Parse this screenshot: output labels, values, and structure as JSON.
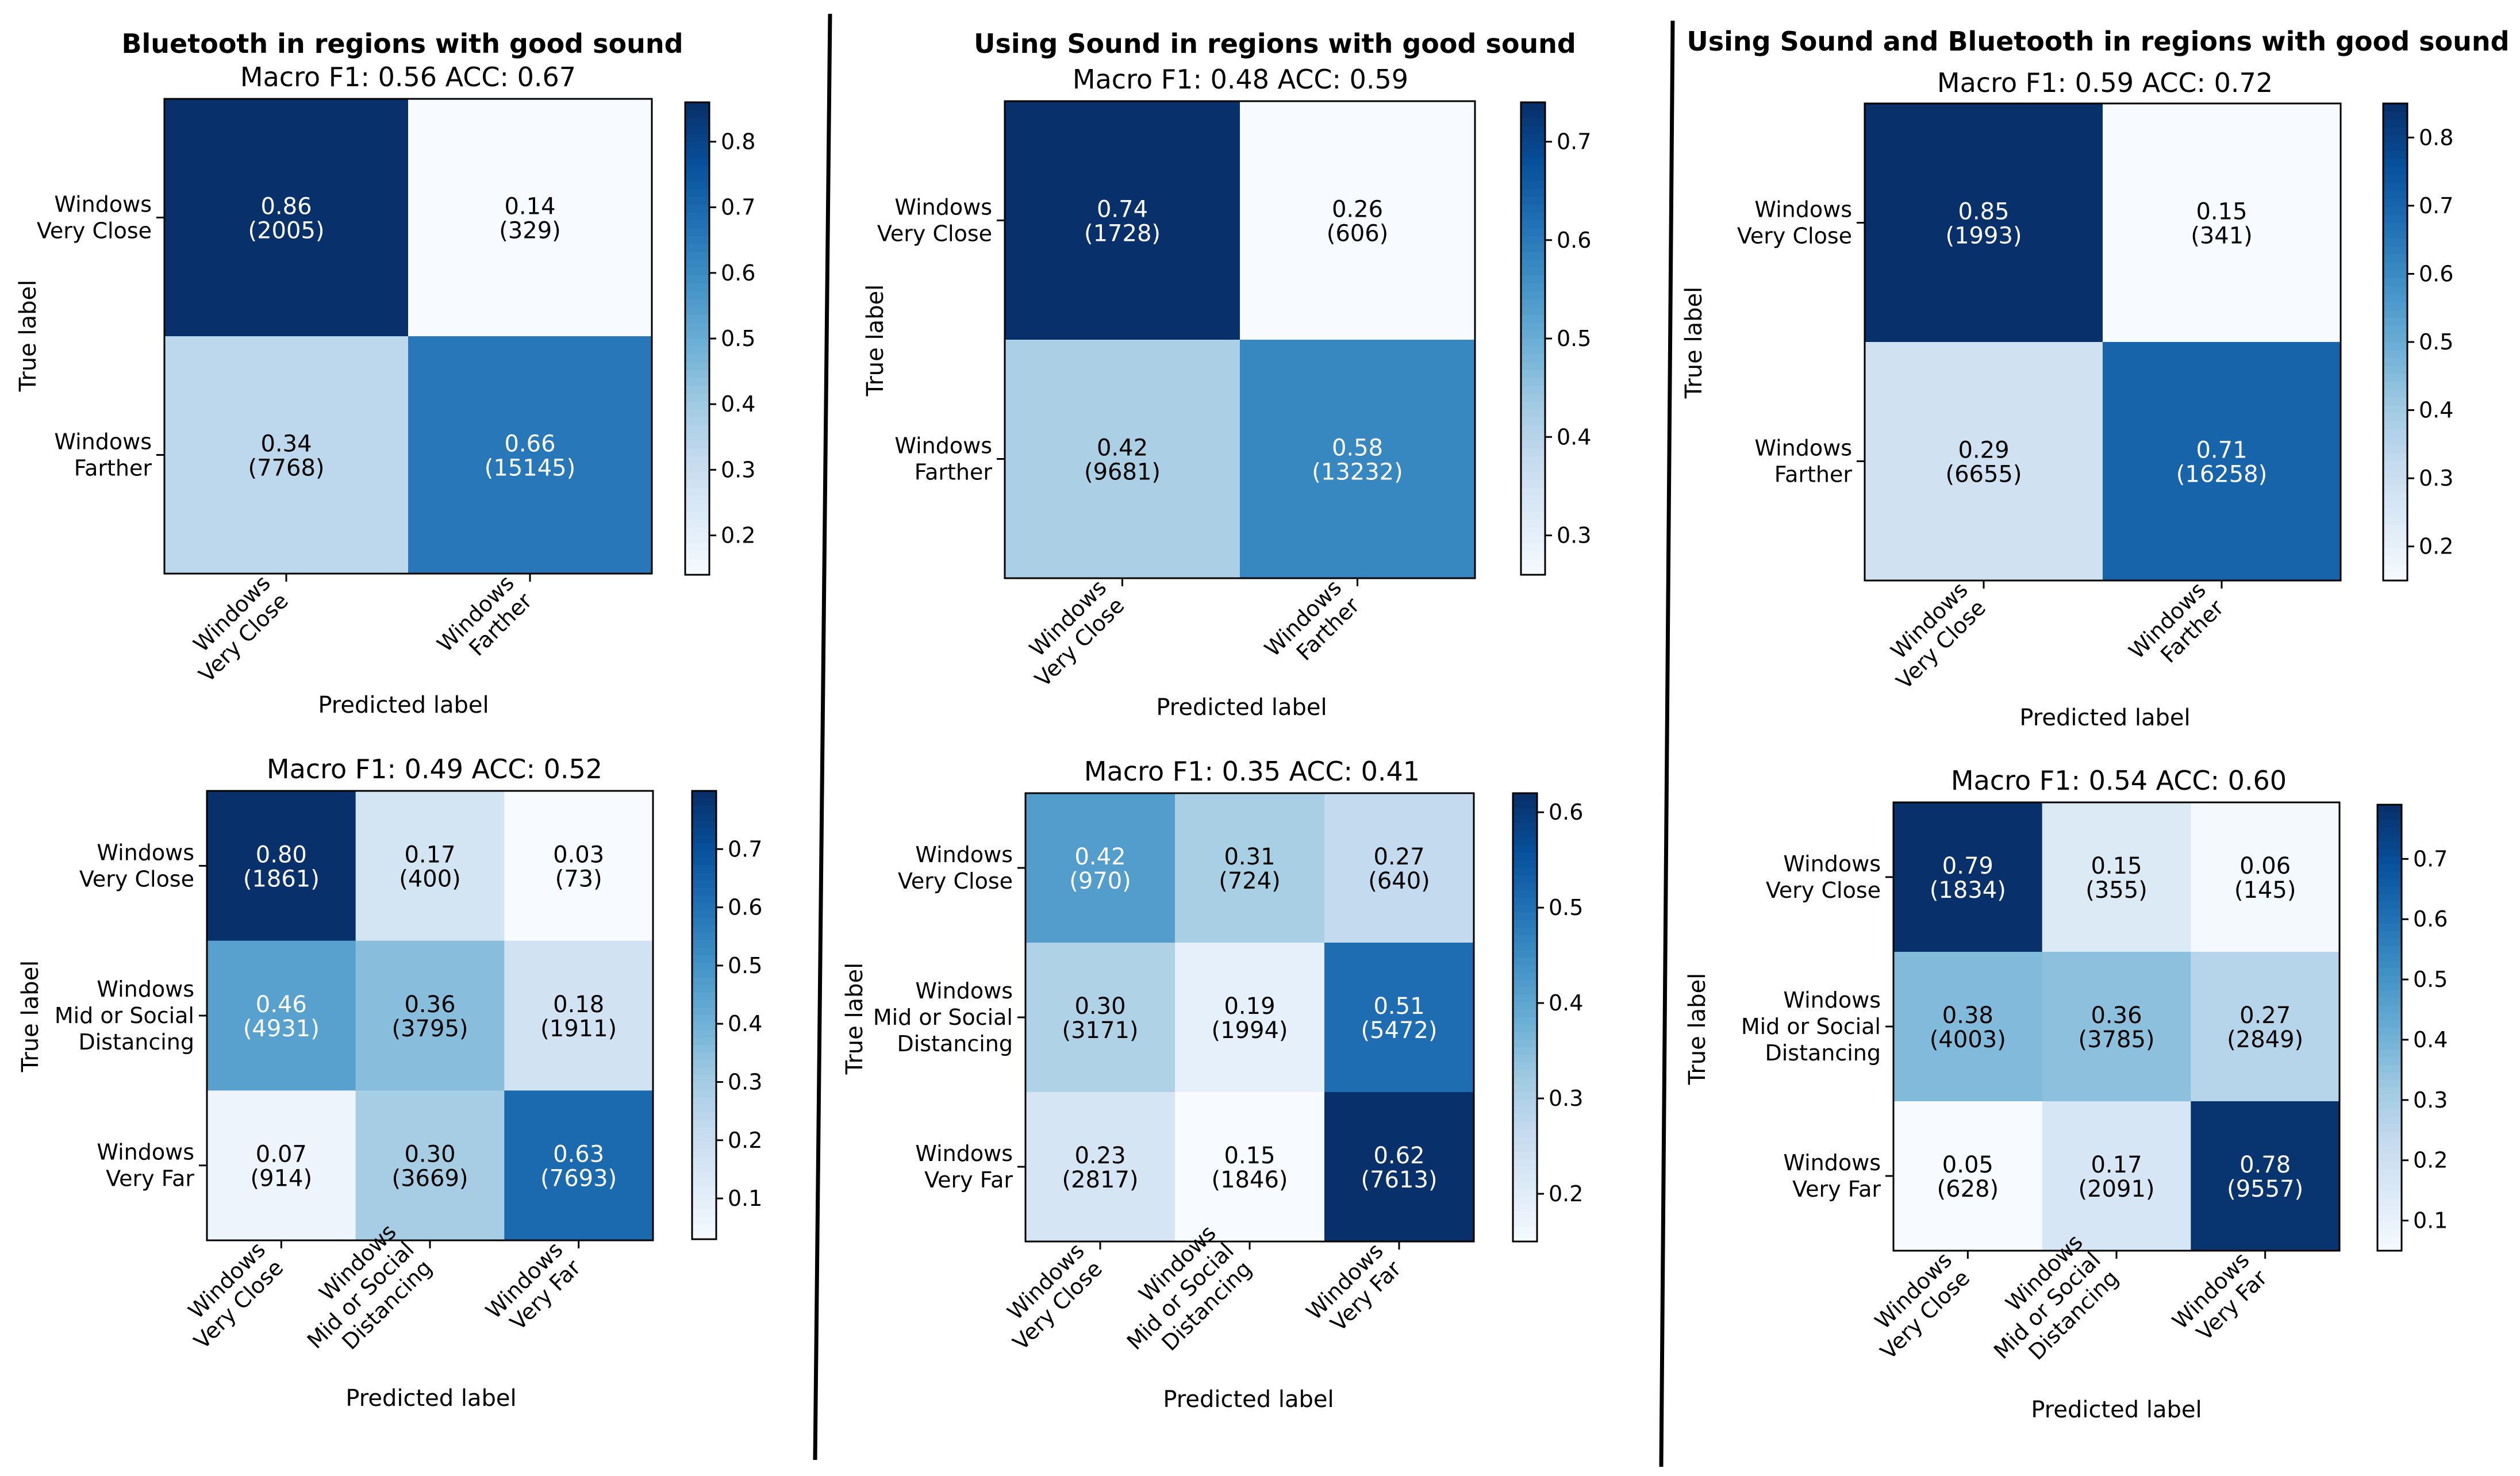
{
  "columns": [
    {
      "title": "Bluetooth in regions with good sound"
    },
    {
      "title": "Using Sound in regions with good sound"
    },
    {
      "title": "Using Sound and Bluetooth in regions with good sound"
    }
  ],
  "colormap": [
    "#f7fbff",
    "#deebf7",
    "#c6dbef",
    "#9ecae1",
    "#6baed6",
    "#4292c6",
    "#2171b5",
    "#08519c",
    "#08306b"
  ],
  "chart_data": [
    {
      "type": "heatmap",
      "title": "Macro F1: 0.56 ACC: 0.67",
      "xlabel": "Predicted label",
      "ylabel": "True label",
      "labels": [
        [
          "Windows",
          "Very Close"
        ],
        [
          "Windows",
          "Farther"
        ]
      ],
      "values": [
        [
          0.86,
          0.14
        ],
        [
          0.34,
          0.66
        ]
      ],
      "counts": [
        [
          2005,
          329
        ],
        [
          7768,
          15145
        ]
      ],
      "cells": [
        [
          {
            "v": "0.86",
            "n": "(2005)"
          },
          {
            "v": "0.14",
            "n": "(329)"
          }
        ],
        [
          {
            "v": "0.34",
            "n": "(7768)"
          },
          {
            "v": "0.66",
            "n": "(15145)"
          }
        ]
      ],
      "vmin": 0.14,
      "vmax": 0.86,
      "colorbar_ticks": [
        "0.2",
        "0.3",
        "0.4",
        "0.5",
        "0.6",
        "0.7",
        "0.8"
      ]
    },
    {
      "type": "heatmap",
      "title": "Macro F1: 0.48 ACC: 0.59",
      "xlabel": "Predicted label",
      "ylabel": "True label",
      "labels": [
        [
          "Windows",
          "Very Close"
        ],
        [
          "Windows",
          "Farther"
        ]
      ],
      "values": [
        [
          0.74,
          0.26
        ],
        [
          0.42,
          0.58
        ]
      ],
      "counts": [
        [
          1728,
          606
        ],
        [
          9681,
          13232
        ]
      ],
      "cells": [
        [
          {
            "v": "0.74",
            "n": "(1728)"
          },
          {
            "v": "0.26",
            "n": "(606)"
          }
        ],
        [
          {
            "v": "0.42",
            "n": "(9681)"
          },
          {
            "v": "0.58",
            "n": "(13232)"
          }
        ]
      ],
      "vmin": 0.26,
      "vmax": 0.74,
      "colorbar_ticks": [
        "0.3",
        "0.4",
        "0.5",
        "0.6",
        "0.7"
      ]
    },
    {
      "type": "heatmap",
      "title": "Macro F1: 0.59 ACC: 0.72",
      "xlabel": "Predicted label",
      "ylabel": "True label",
      "labels": [
        [
          "Windows",
          "Very Close"
        ],
        [
          "Windows",
          "Farther"
        ]
      ],
      "values": [
        [
          0.85,
          0.15
        ],
        [
          0.29,
          0.71
        ]
      ],
      "counts": [
        [
          1993,
          341
        ],
        [
          6655,
          16258
        ]
      ],
      "cells": [
        [
          {
            "v": "0.85",
            "n": "(1993)"
          },
          {
            "v": "0.15",
            "n": "(341)"
          }
        ],
        [
          {
            "v": "0.29",
            "n": "(6655)"
          },
          {
            "v": "0.71",
            "n": "(16258)"
          }
        ]
      ],
      "vmin": 0.15,
      "vmax": 0.85,
      "colorbar_ticks": [
        "0.2",
        "0.3",
        "0.4",
        "0.5",
        "0.6",
        "0.7",
        "0.8"
      ]
    },
    {
      "type": "heatmap",
      "title": "Macro F1: 0.49 ACC: 0.52",
      "xlabel": "Predicted label",
      "ylabel": "True label",
      "labels": [
        [
          "Windows",
          "Very Close"
        ],
        [
          "Windows",
          "Mid or Social",
          "Distancing"
        ],
        [
          "Windows",
          "Very Far"
        ]
      ],
      "values": [
        [
          0.8,
          0.17,
          0.03
        ],
        [
          0.46,
          0.36,
          0.18
        ],
        [
          0.07,
          0.3,
          0.63
        ]
      ],
      "counts": [
        [
          1861,
          400,
          73
        ],
        [
          4931,
          3795,
          1911
        ],
        [
          914,
          3669,
          7693
        ]
      ],
      "cells": [
        [
          {
            "v": "0.80",
            "n": "(1861)"
          },
          {
            "v": "0.17",
            "n": "(400)"
          },
          {
            "v": "0.03",
            "n": "(73)"
          }
        ],
        [
          {
            "v": "0.46",
            "n": "(4931)"
          },
          {
            "v": "0.36",
            "n": "(3795)"
          },
          {
            "v": "0.18",
            "n": "(1911)"
          }
        ],
        [
          {
            "v": "0.07",
            "n": "(914)"
          },
          {
            "v": "0.30",
            "n": "(3669)"
          },
          {
            "v": "0.63",
            "n": "(7693)"
          }
        ]
      ],
      "vmin": 0.03,
      "vmax": 0.8,
      "colorbar_ticks": [
        "0.1",
        "0.2",
        "0.3",
        "0.4",
        "0.5",
        "0.6",
        "0.7"
      ]
    },
    {
      "type": "heatmap",
      "title": "Macro F1: 0.35 ACC: 0.41",
      "xlabel": "Predicted label",
      "ylabel": "True label",
      "labels": [
        [
          "Windows",
          "Very Close"
        ],
        [
          "Windows",
          "Mid or Social",
          "Distancing"
        ],
        [
          "Windows",
          "Very Far"
        ]
      ],
      "values": [
        [
          0.42,
          0.31,
          0.27
        ],
        [
          0.3,
          0.19,
          0.51
        ],
        [
          0.23,
          0.15,
          0.62
        ]
      ],
      "counts": [
        [
          970,
          724,
          640
        ],
        [
          3171,
          1994,
          5472
        ],
        [
          2817,
          1846,
          7613
        ]
      ],
      "cells": [
        [
          {
            "v": "0.42",
            "n": "(970)"
          },
          {
            "v": "0.31",
            "n": "(724)"
          },
          {
            "v": "0.27",
            "n": "(640)"
          }
        ],
        [
          {
            "v": "0.30",
            "n": "(3171)"
          },
          {
            "v": "0.19",
            "n": "(1994)"
          },
          {
            "v": "0.51",
            "n": "(5472)"
          }
        ],
        [
          {
            "v": "0.23",
            "n": "(2817)"
          },
          {
            "v": "0.15",
            "n": "(1846)"
          },
          {
            "v": "0.62",
            "n": "(7613)"
          }
        ]
      ],
      "vmin": 0.15,
      "vmax": 0.62,
      "colorbar_ticks": [
        "0.2",
        "0.3",
        "0.4",
        "0.5",
        "0.6"
      ]
    },
    {
      "type": "heatmap",
      "title": "Macro F1: 0.54 ACC: 0.60",
      "xlabel": "Predicted label",
      "ylabel": "True label",
      "labels": [
        [
          "Windows",
          "Very Close"
        ],
        [
          "Windows",
          "Mid or Social",
          "Distancing"
        ],
        [
          "Windows",
          "Very Far"
        ]
      ],
      "values": [
        [
          0.79,
          0.15,
          0.06
        ],
        [
          0.38,
          0.36,
          0.27
        ],
        [
          0.05,
          0.17,
          0.78
        ]
      ],
      "counts": [
        [
          1834,
          355,
          145
        ],
        [
          4003,
          3785,
          2849
        ],
        [
          628,
          2091,
          9557
        ]
      ],
      "cells": [
        [
          {
            "v": "0.79",
            "n": "(1834)"
          },
          {
            "v": "0.15",
            "n": "(355)"
          },
          {
            "v": "0.06",
            "n": "(145)"
          }
        ],
        [
          {
            "v": "0.38",
            "n": "(4003)"
          },
          {
            "v": "0.36",
            "n": "(3785)"
          },
          {
            "v": "0.27",
            "n": "(2849)"
          }
        ],
        [
          {
            "v": "0.05",
            "n": "(628)"
          },
          {
            "v": "0.17",
            "n": "(2091)"
          },
          {
            "v": "0.78",
            "n": "(9557)"
          }
        ]
      ],
      "vmin": 0.05,
      "vmax": 0.79,
      "colorbar_ticks": [
        "0.1",
        "0.2",
        "0.3",
        "0.4",
        "0.5",
        "0.6",
        "0.7"
      ]
    }
  ]
}
